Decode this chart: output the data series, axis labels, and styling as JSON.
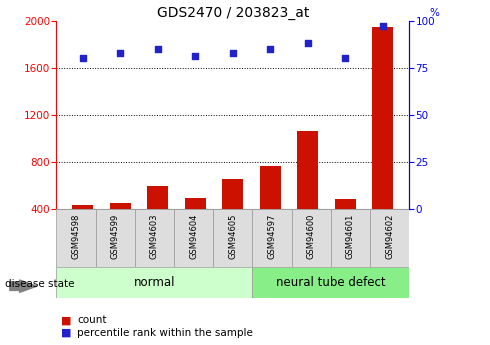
{
  "title": "GDS2470 / 203823_at",
  "samples": [
    "GSM94598",
    "GSM94599",
    "GSM94603",
    "GSM94604",
    "GSM94605",
    "GSM94597",
    "GSM94600",
    "GSM94601",
    "GSM94602"
  ],
  "counts": [
    430,
    450,
    590,
    490,
    650,
    760,
    1060,
    480,
    1950
  ],
  "percentiles": [
    80,
    83,
    85,
    81,
    83,
    85,
    88,
    80,
    97
  ],
  "ylim_left": [
    400,
    2000
  ],
  "ylim_right": [
    0,
    100
  ],
  "yticks_left": [
    400,
    800,
    1200,
    1600,
    2000
  ],
  "yticks_right": [
    0,
    25,
    50,
    75,
    100
  ],
  "bar_color": "#cc1100",
  "dot_color": "#2222cc",
  "grid_color": "#000000",
  "normal_indices": [
    0,
    1,
    2,
    3,
    4
  ],
  "defect_indices": [
    5,
    6,
    7,
    8
  ],
  "normal_label": "normal",
  "defect_label": "neural tube defect",
  "disease_state_label": "disease state",
  "legend_count": "count",
  "legend_pct": "percentile rank within the sample",
  "normal_bg": "#ccffcc",
  "defect_bg": "#88ee88",
  "xtick_bg": "#dddddd",
  "bar_bottom": 400,
  "dot_size": 18,
  "title_fontsize": 10,
  "tick_fontsize": 7.5,
  "label_fontsize": 8.5
}
